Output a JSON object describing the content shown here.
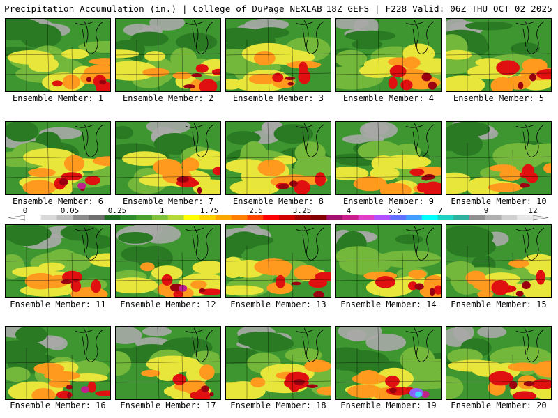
{
  "header": {
    "title_left": "Precipitation Accumulation (in.) | College of DuPage NEXLAB",
    "title_right": "18Z GEFS | F228 Valid: 06Z THU OCT 02 2025"
  },
  "panels": [
    {
      "label": "Ensemble Member: 1"
    },
    {
      "label": "Ensemble Member: 2"
    },
    {
      "label": "Ensemble Member: 3"
    },
    {
      "label": "Ensemble Member: 4"
    },
    {
      "label": "Ensemble Member: 5"
    },
    {
      "label": "Ensemble Member: 6"
    },
    {
      "label": "Ensemble Member: 7"
    },
    {
      "label": "Ensemble Member: 8"
    },
    {
      "label": "Ensemble Member: 9"
    },
    {
      "label": "Ensemble Member: 10"
    },
    {
      "label": "Ensemble Member: 11"
    },
    {
      "label": "Ensemble Member: 12"
    },
    {
      "label": "Ensemble Member: 13"
    },
    {
      "label": "Ensemble Member: 14"
    },
    {
      "label": "Ensemble Member: 15"
    },
    {
      "label": "Ensemble Member: 16"
    },
    {
      "label": "Ensemble Member: 17"
    },
    {
      "label": "Ensemble Member: 18"
    },
    {
      "label": "Ensemble Member: 19"
    },
    {
      "label": "Ensemble Member: 20"
    }
  ],
  "legend": {
    "tick_labels": [
      "0",
      "0.05",
      "0.25",
      "1",
      "1.75",
      "2.5",
      "3.25",
      "4",
      "5.5",
      "7",
      "9",
      "12"
    ],
    "colors": [
      "#ffffff",
      "#d9d9d9",
      "#bdbdbd",
      "#8c8c8c",
      "#6e6e6e",
      "#1f6b1f",
      "#2e8b2e",
      "#4aa02c",
      "#7fc23a",
      "#b5d93a",
      "#ffff00",
      "#ffd000",
      "#ffa500",
      "#ff7f00",
      "#ff4500",
      "#ff0000",
      "#d00000",
      "#a00000",
      "#800000",
      "#a0106e",
      "#c81e8c",
      "#e040c8",
      "#b050ff",
      "#6070ff",
      "#40a0ff",
      "#00ffff",
      "#20d0c0",
      "#30b0a0",
      "#909090",
      "#b0b0b0",
      "#d0d0d0",
      "#e8e8e8"
    ]
  },
  "palette": {
    "gray": "#a8a8a8",
    "dark_green": "#2a7a24",
    "green": "#3d962f",
    "light_green": "#73b83b",
    "yellow": "#e8e63a",
    "orange": "#ff9a1f",
    "red_orange": "#ff5a1a",
    "red": "#e01010",
    "dark_red": "#9a0010",
    "magenta": "#c0208c",
    "purple": "#9060ff",
    "cyan": "#40d8ff"
  }
}
